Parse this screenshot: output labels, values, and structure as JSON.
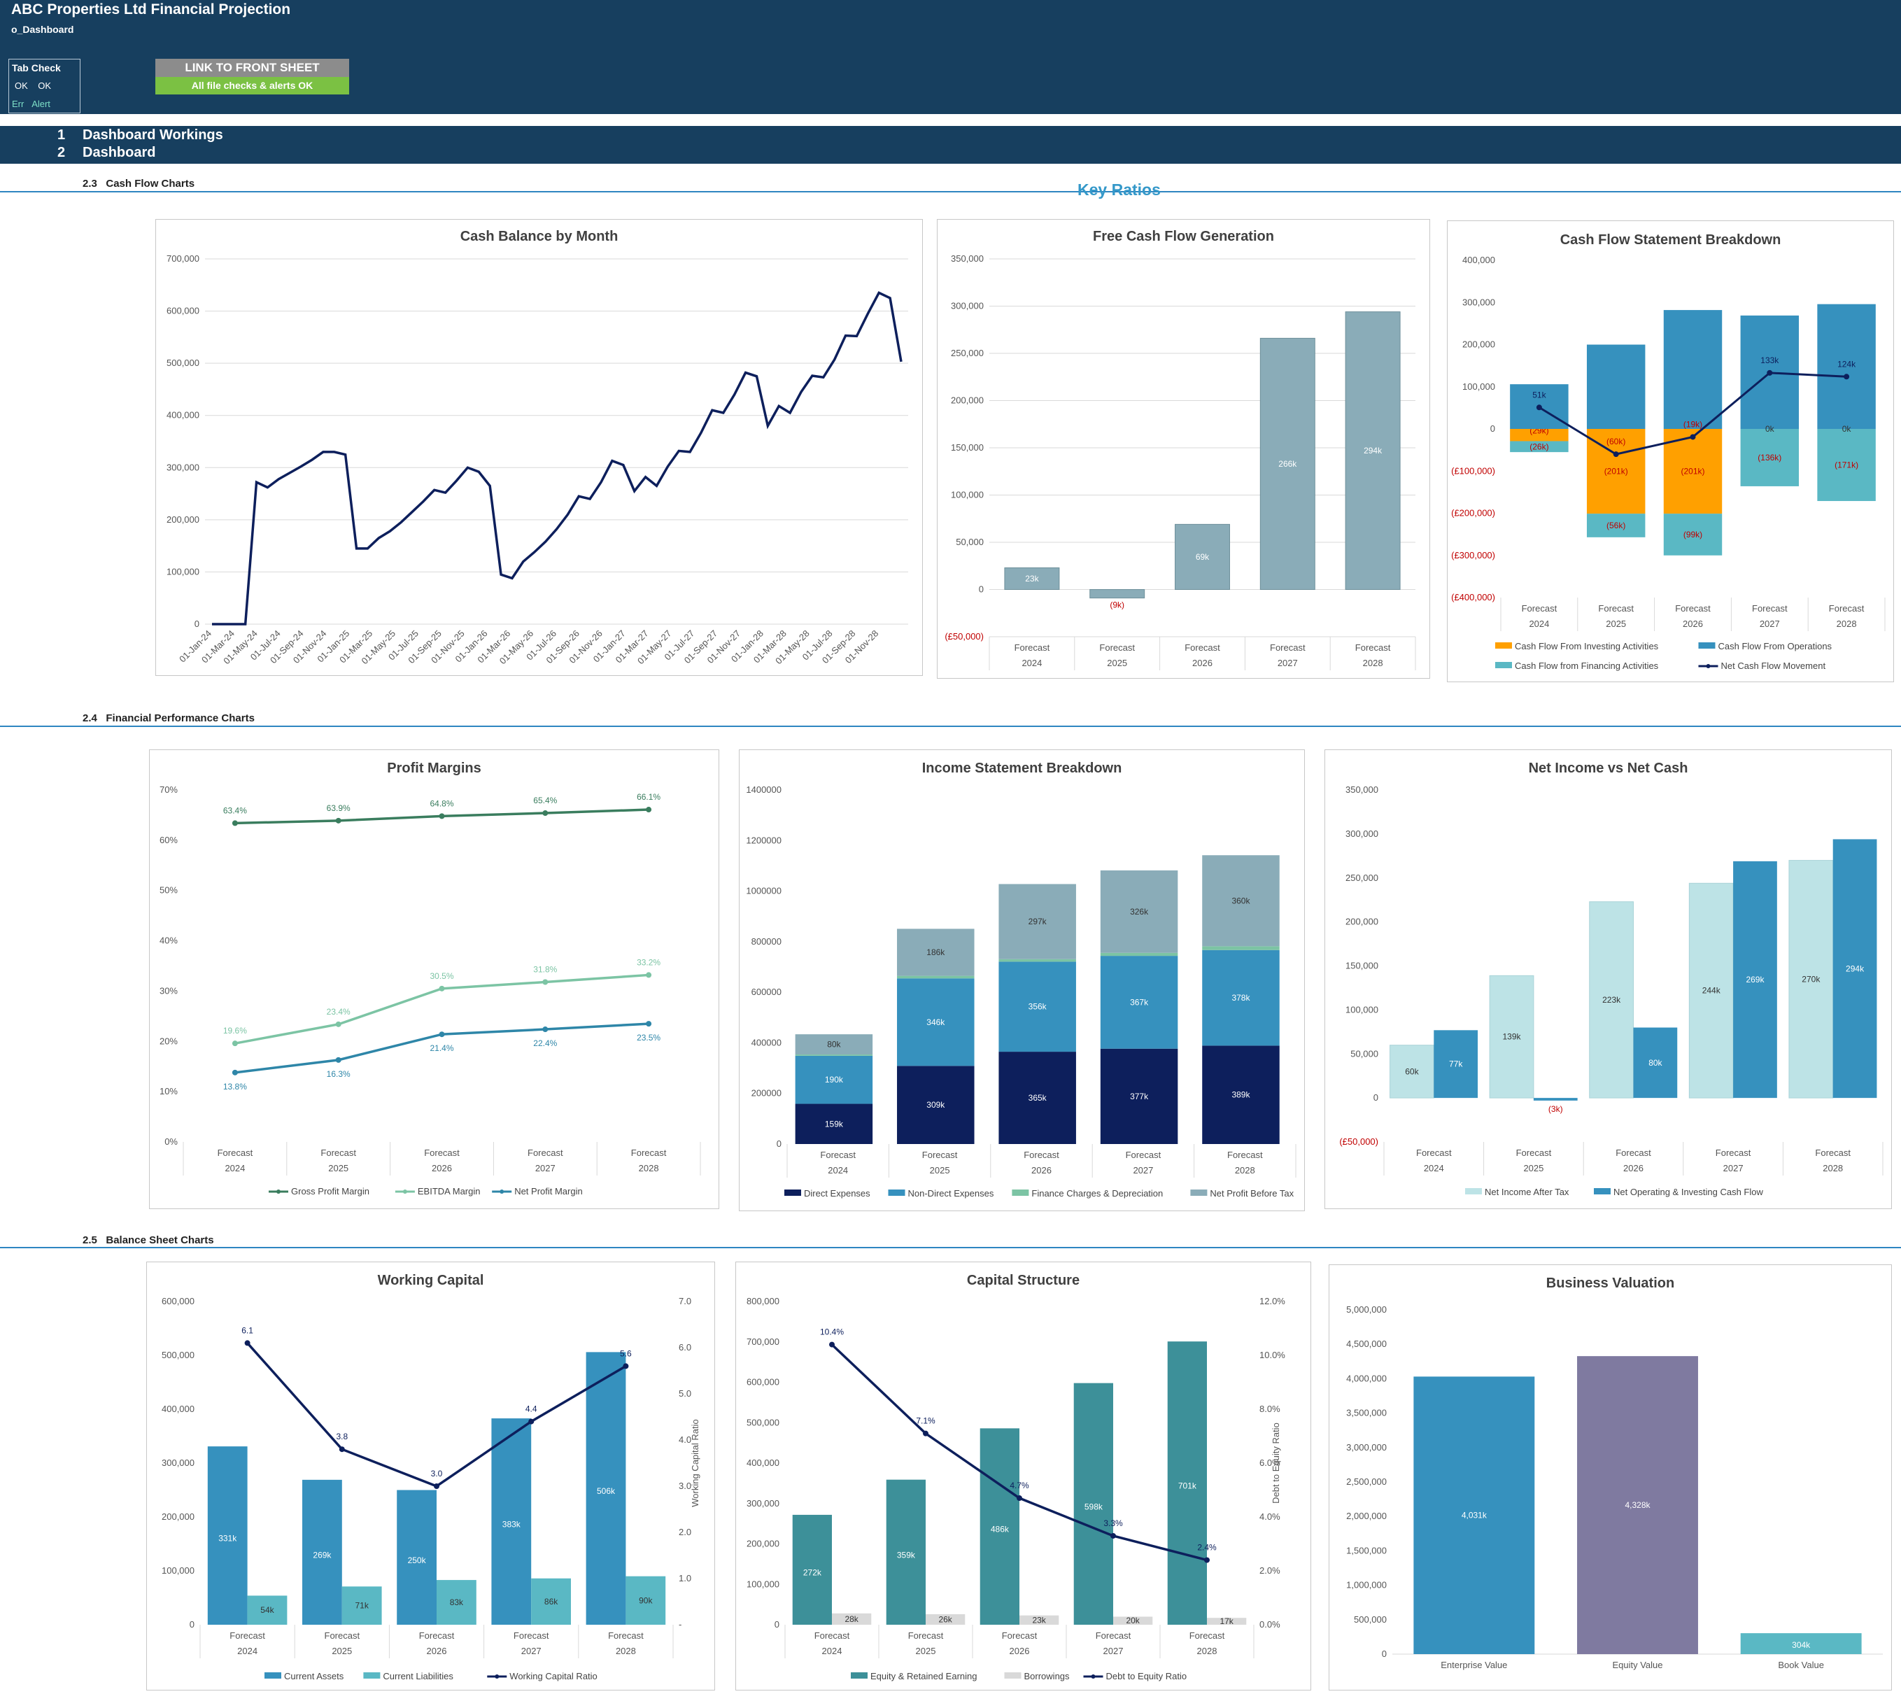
{
  "header": {
    "title": "ABC Properties Ltd Financial Projection",
    "subtitle": "o_Dashboard",
    "link_label": "LINK TO FRONT SHEET",
    "checks_label": "All file checks & alerts OK",
    "tab_check": {
      "title": "Tab Check",
      "ok1": "OK",
      "ok2": "OK",
      "err": "Err",
      "alert": "Alert"
    }
  },
  "nav": {
    "items": [
      {
        "num": "1",
        "label": "Dashboard Workings"
      },
      {
        "num": "2",
        "label": "Dashboard"
      }
    ]
  },
  "sections": {
    "s23": {
      "num": "2.3",
      "label": "Cash Flow Charts"
    },
    "s24": {
      "num": "2.4",
      "label": "Financial Performance Charts"
    },
    "s25": {
      "num": "2.5",
      "label": "Balance Sheet Charts"
    },
    "key_ratios": "Key Ratios"
  },
  "colors": {
    "navy": "#0d1f5c",
    "steel": "#8aacb8",
    "orange": "#ffa000",
    "blue": "#3691be",
    "teal": "#5ab8c4",
    "darkteal": "#3d9099",
    "lightblue": "#bde3e6",
    "purple": "#7f7aa0",
    "grey": "#d9d9d9",
    "green": "#3a7d5e",
    "mint": "#7cc4a4"
  },
  "categories": [
    "Forecast",
    "Forecast",
    "Forecast",
    "Forecast",
    "Forecast"
  ],
  "years": [
    "2024",
    "2025",
    "2026",
    "2027",
    "2028"
  ],
  "chart_data": [
    {
      "type": "line",
      "title": "Cash Balance by Month",
      "ylim": [
        0,
        700000
      ],
      "yticks": [
        "0",
        "100,000",
        "200,000",
        "300,000",
        "400,000",
        "500,000",
        "600,000",
        "700,000"
      ],
      "xticks": [
        "01-Jan-24",
        "01-Mar-24",
        "01-May-24",
        "01-Jul-24",
        "01-Sep-24",
        "01-Nov-24",
        "01-Jan-25",
        "01-Mar-25",
        "01-May-25",
        "01-Jul-25",
        "01-Sep-25",
        "01-Nov-25",
        "01-Jan-26",
        "01-Mar-26",
        "01-May-26",
        "01-Jul-26",
        "01-Sep-26",
        "01-Nov-26",
        "01-Jan-27",
        "01-Mar-27",
        "01-May-27",
        "01-Jul-27",
        "01-Sep-27",
        "01-Nov-27",
        "01-Jan-28",
        "01-Mar-28",
        "01-May-28",
        "01-Jul-28",
        "01-Sep-28",
        "01-Nov-28"
      ],
      "values": [
        0,
        0,
        0,
        0,
        272000,
        262000,
        278000,
        290000,
        302000,
        315000,
        330000,
        330000,
        325000,
        145000,
        145000,
        165000,
        178000,
        195000,
        215000,
        235000,
        257000,
        252000,
        275000,
        300000,
        292000,
        265000,
        95000,
        88000,
        120000,
        138000,
        158000,
        182000,
        210000,
        245000,
        240000,
        272000,
        313000,
        305000,
        255000,
        282000,
        265000,
        302000,
        332000,
        330000,
        367000,
        410000,
        405000,
        440000,
        482000,
        475000,
        380000,
        418000,
        405000,
        445000,
        476000,
        473000,
        507000,
        553000,
        552000,
        595000,
        635000,
        625000,
        503000
      ]
    },
    {
      "type": "bar",
      "title": "Free Cash Flow Generation",
      "ylim": [
        -50000,
        350000
      ],
      "yticks": [
        "(£50,000)",
        "0",
        "50,000",
        "100,000",
        "150,000",
        "200,000",
        "250,000",
        "300,000",
        "350,000"
      ],
      "values": [
        23000,
        -9000,
        69000,
        266000,
        294000
      ],
      "labels": [
        "23k",
        "(9k)",
        "69k",
        "266k",
        "294k"
      ]
    },
    {
      "type": "bar",
      "title": "Cash Flow Statement Breakdown",
      "ylim": [
        -400000,
        400000
      ],
      "yticks": [
        "(£400,000)",
        "(£300,000)",
        "(£200,000)",
        "(£100,000)",
        "0",
        "100,000",
        "200,000",
        "300,000",
        "400,000"
      ],
      "series": [
        {
          "name": "Cash Flow From Investing Activities",
          "values": [
            -29000,
            -201000,
            -201000,
            0,
            0
          ],
          "labels": [
            "(29k)",
            "(201k)",
            "(201k)",
            "",
            ""
          ]
        },
        {
          "name": "Cash Flow From Operations",
          "values": [
            106000,
            200000,
            282000,
            269000,
            296000
          ],
          "labels": [
            "",
            "",
            "",
            "",
            ""
          ]
        },
        {
          "name": "Cash Flow from Financing Activities",
          "values": [
            -26000,
            -56000,
            -99000,
            -136000,
            -171000
          ],
          "labels": [
            "(26k)",
            "(56k)",
            "(99k)",
            "(136k)",
            "(171k)"
          ]
        },
        {
          "name": "Net Cash Flow Movement",
          "values": [
            51000,
            -60000,
            -19000,
            133000,
            124000
          ],
          "labels": [
            "51k",
            "(60k)",
            "(19k)",
            "133k",
            "124k"
          ]
        }
      ],
      "zero_labels": [
        "",
        "",
        "",
        "0k",
        "0k"
      ]
    },
    {
      "type": "line",
      "title": "Profit Margins",
      "ylim": [
        0,
        70
      ],
      "yticks": [
        "0%",
        "10%",
        "20%",
        "30%",
        "40%",
        "50%",
        "60%",
        "70%"
      ],
      "series": [
        {
          "name": "Gross Profit Margin",
          "values": [
            63.4,
            63.9,
            64.8,
            65.4,
            66.1
          ],
          "labels": [
            "63.4%",
            "63.9%",
            "64.8%",
            "65.4%",
            "66.1%"
          ]
        },
        {
          "name": "EBITDA Margin",
          "values": [
            19.6,
            23.4,
            30.5,
            31.8,
            33.2
          ],
          "labels": [
            "19.6%",
            "23.4%",
            "30.5%",
            "31.8%",
            "33.2%"
          ]
        },
        {
          "name": "Net Profit Margin",
          "values": [
            13.8,
            16.3,
            21.4,
            22.4,
            23.5
          ],
          "labels": [
            "13.8%",
            "16.3%",
            "21.4%",
            "22.4%",
            "23.5%"
          ]
        }
      ]
    },
    {
      "type": "bar",
      "title": "Income Statement Breakdown",
      "ylim": [
        0,
        1400000
      ],
      "yticks": [
        "0",
        "200000",
        "400000",
        "600000",
        "800000",
        "1000000",
        "1200000",
        "1400000"
      ],
      "series": [
        {
          "name": "Direct Expenses",
          "values": [
            159000,
            309000,
            365000,
            377000,
            389000
          ],
          "labels": [
            "159k",
            "309k",
            "365k",
            "377k",
            "389k"
          ]
        },
        {
          "name": "Non-Direct Expenses",
          "values": [
            190000,
            346000,
            356000,
            367000,
            378000
          ],
          "labels": [
            "190k",
            "346k",
            "356k",
            "367k",
            "378k"
          ]
        },
        {
          "name": "Finance Charges & Depreciation",
          "values": [
            5000,
            10000,
            10000,
            12000,
            15000
          ],
          "labels": [
            "",
            "",
            "",
            "",
            ""
          ]
        },
        {
          "name": "Net Profit Before Tax",
          "values": [
            80000,
            186000,
            297000,
            326000,
            360000
          ],
          "labels": [
            "80k",
            "186k",
            "297k",
            "326k",
            "360k"
          ]
        }
      ]
    },
    {
      "type": "bar",
      "title": "Net Income vs Net Cash",
      "ylim": [
        -50000,
        350000
      ],
      "yticks": [
        "(£50,000)",
        "0",
        "50,000",
        "100,000",
        "150,000",
        "200,000",
        "250,000",
        "300,000",
        "350,000"
      ],
      "series": [
        {
          "name": "Net Income After Tax",
          "values": [
            60000,
            139000,
            223000,
            244000,
            270000
          ],
          "labels": [
            "60k",
            "139k",
            "223k",
            "244k",
            "270k"
          ]
        },
        {
          "name": "Net Operating & Investing Cash Flow",
          "values": [
            77000,
            -3000,
            80000,
            269000,
            294000
          ],
          "labels": [
            "77k",
            "(3k)",
            "80k",
            "269k",
            "294k"
          ]
        }
      ]
    },
    {
      "type": "bar",
      "title": "Working Capital",
      "ylim": [
        0,
        600000
      ],
      "y2lim": [
        0,
        7
      ],
      "y2label": "Working Capital Ratio",
      "yticks": [
        "0",
        "100,000",
        "200,000",
        "300,000",
        "400,000",
        "500,000",
        "600,000"
      ],
      "y2ticks": [
        "-",
        "1.0",
        "2.0",
        "3.0",
        "4.0",
        "5.0",
        "6.0",
        "7.0"
      ],
      "series": [
        {
          "name": "Current Assets",
          "values": [
            331000,
            269000,
            250000,
            383000,
            506000
          ],
          "labels": [
            "331k",
            "269k",
            "250k",
            "383k",
            "506k"
          ]
        },
        {
          "name": "Current Liabilities",
          "values": [
            54000,
            71000,
            83000,
            86000,
            90000
          ],
          "labels": [
            "54k",
            "71k",
            "83k",
            "86k",
            "90k"
          ]
        },
        {
          "name": "Working Capital Ratio",
          "values": [
            6.1,
            3.8,
            3.0,
            4.4,
            5.6
          ],
          "labels": [
            "6.1",
            "3.8",
            "3.0",
            "4.4",
            "5.6"
          ]
        }
      ]
    },
    {
      "type": "bar",
      "title": "Capital Structure",
      "ylim": [
        0,
        800000
      ],
      "y2lim": [
        0,
        12
      ],
      "y2label": "Debt to Equity Ratio",
      "yticks": [
        "0",
        "100,000",
        "200,000",
        "300,000",
        "400,000",
        "500,000",
        "600,000",
        "700,000",
        "800,000"
      ],
      "y2ticks": [
        "0.0%",
        "2.0%",
        "4.0%",
        "6.0%",
        "8.0%",
        "10.0%",
        "12.0%"
      ],
      "series": [
        {
          "name": "Equity & Retained Earning",
          "values": [
            272000,
            359000,
            486000,
            598000,
            701000
          ],
          "labels": [
            "272k",
            "359k",
            "486k",
            "598k",
            "701k"
          ]
        },
        {
          "name": "Borrowings",
          "values": [
            28000,
            26000,
            23000,
            20000,
            17000
          ],
          "labels": [
            "28k",
            "26k",
            "23k",
            "20k",
            "17k"
          ]
        },
        {
          "name": "Debt to Equity Ratio",
          "values": [
            10.4,
            7.1,
            4.7,
            3.3,
            2.4
          ],
          "labels": [
            "10.4%",
            "7.1%",
            "4.7%",
            "3.3%",
            "2.4%"
          ]
        }
      ]
    },
    {
      "type": "bar",
      "title": "Business Valuation",
      "ylim": [
        0,
        5000000
      ],
      "yticks": [
        "0",
        "500,000",
        "1,000,000",
        "1,500,000",
        "2,000,000",
        "2,500,000",
        "3,000,000",
        "3,500,000",
        "4,000,000",
        "4,500,000",
        "5,000,000"
      ],
      "categories": [
        "Enterprise Value",
        "Equity Value",
        "Book Value"
      ],
      "values": [
        4031000,
        4328000,
        304000
      ],
      "labels": [
        "4,031k",
        "4,328k",
        "304k"
      ]
    }
  ]
}
